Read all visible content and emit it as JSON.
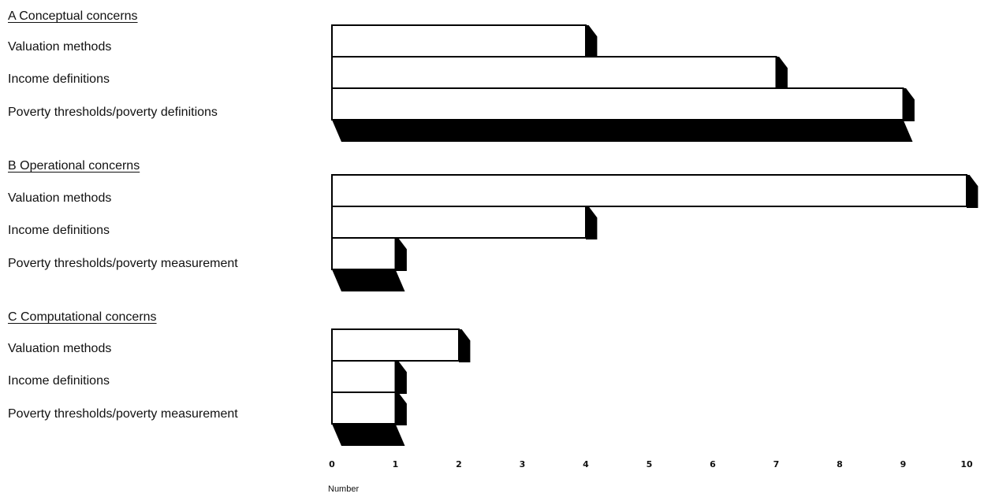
{
  "chart_data": {
    "type": "bar",
    "orientation": "horizontal",
    "title": "",
    "xlabel": "Number",
    "ylabel": "",
    "xlim": [
      0,
      10
    ],
    "x_ticks": [
      "0",
      "1",
      "2",
      "3",
      "4",
      "5",
      "6",
      "7",
      "8",
      "9",
      "10"
    ],
    "grid": false,
    "legend": "none",
    "groups": [
      {
        "title": "A Conceptual concerns",
        "categories": [
          "Valuation methods",
          "Income definitions",
          "Poverty thresholds/poverty definitions"
        ],
        "values": [
          4,
          7,
          9
        ]
      },
      {
        "title": "B Operational concerns",
        "categories": [
          "Valuation methods",
          "Income definitions",
          "Poverty thresholds/poverty measurement"
        ],
        "values": [
          10,
          4,
          1
        ]
      },
      {
        "title": "C Computational concerns",
        "categories": [
          "Valuation methods",
          "Income definitions",
          "Poverty thresholds/poverty measurement"
        ],
        "values": [
          2,
          1,
          1
        ]
      }
    ],
    "colors": {
      "bar_fill": "#ffffff",
      "bar_edge": "#000000",
      "shadow": "#000000"
    }
  }
}
